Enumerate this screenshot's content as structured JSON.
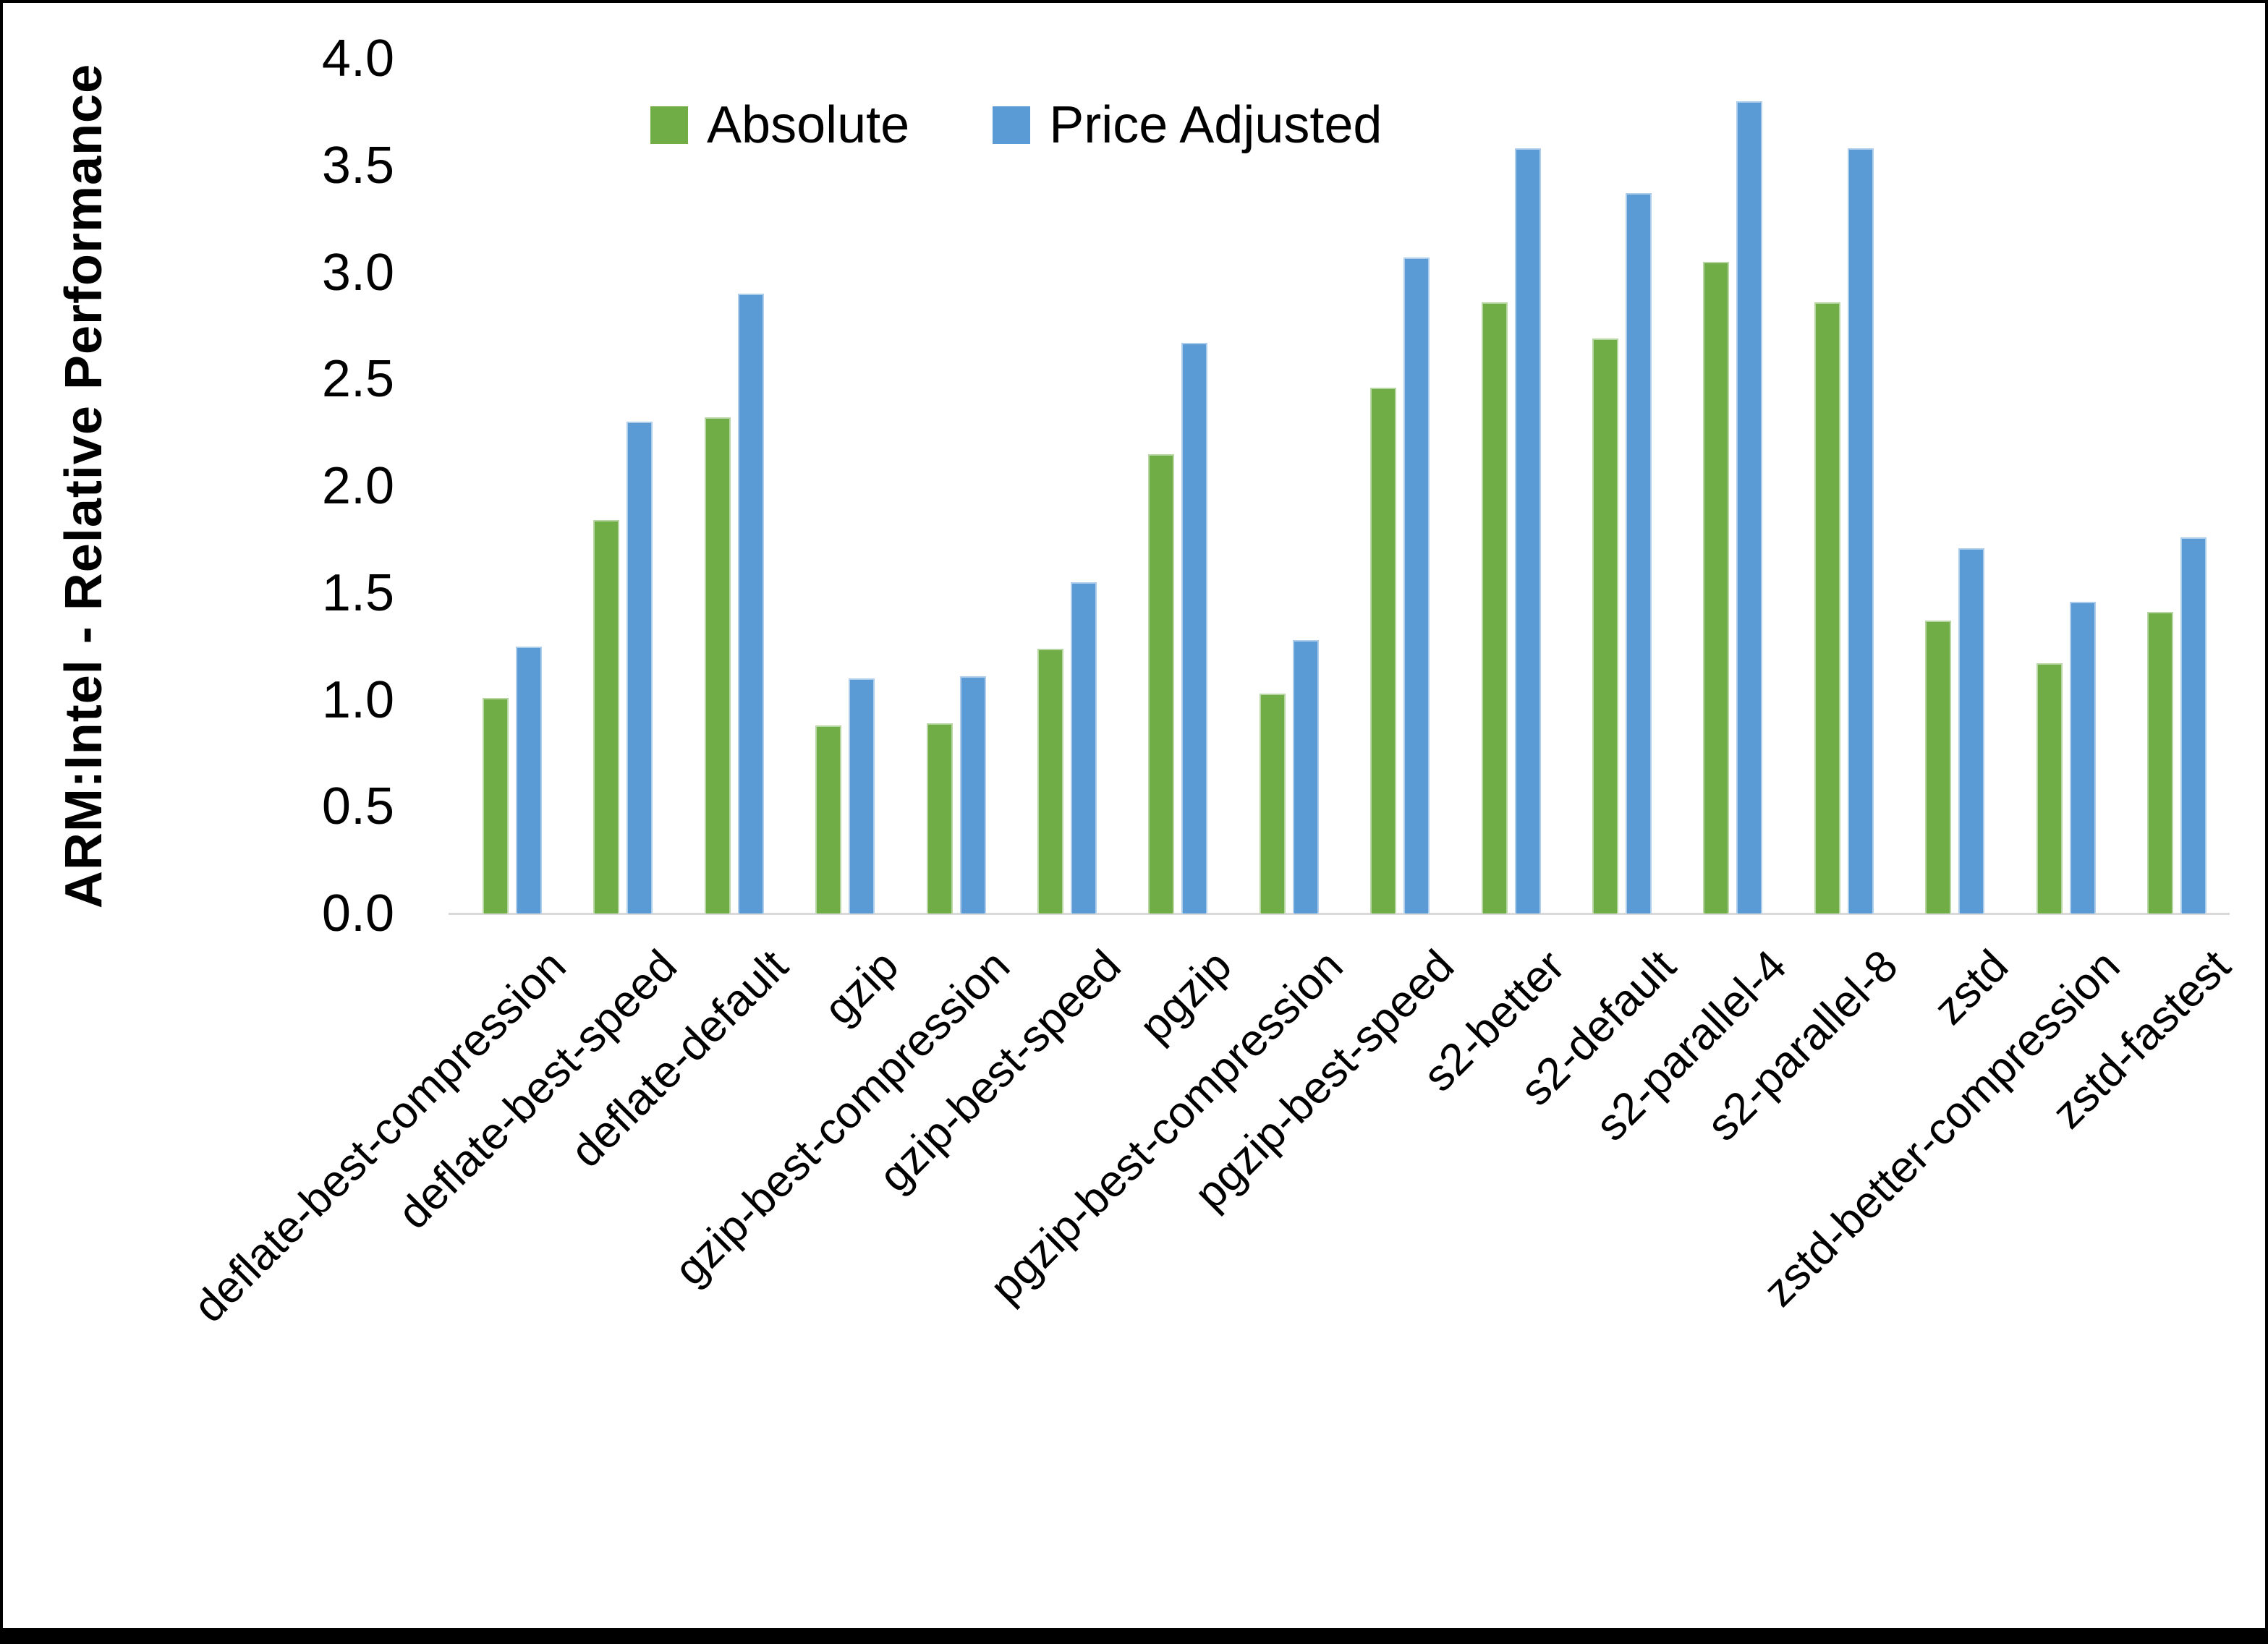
{
  "figure": {
    "background": "#ffffff",
    "frame_border_color": "#000000",
    "axis_line_color": "#d9d9d9",
    "text_color": "#000000"
  },
  "legend": {
    "position": "top-center",
    "items": [
      {
        "label": "Absolute",
        "color": "#70AD47"
      },
      {
        "label": "Price Adjusted",
        "color": "#5B9BD5"
      }
    ]
  },
  "chart_data": {
    "type": "bar",
    "title": "",
    "xlabel": "",
    "ylabel": "ARM:Intel - Relative Performance",
    "ylim": [
      0.0,
      4.0
    ],
    "ytick_step": 0.5,
    "ytick_labels": [
      "0.0",
      "0.5",
      "1.0",
      "1.5",
      "2.0",
      "2.5",
      "3.0",
      "3.5",
      "4.0"
    ],
    "grid": false,
    "legend_position": "top-center",
    "categories": [
      "deflate-best-compression",
      "deflate-best-speed",
      "deflate-default",
      "gzip",
      "gzip-best-compression",
      "gzip-best-speed",
      "pgzip",
      "pgzip-best-compression",
      "pgzip-best-speed",
      "s2-better",
      "s2-default",
      "s2-parallel-4",
      "s2-parallel-8",
      "zstd",
      "zstd-better-compression",
      "zstd-fastest"
    ],
    "series": [
      {
        "name": "Absolute",
        "color": "#70AD47",
        "values": [
          1.01,
          1.84,
          2.32,
          0.88,
          0.89,
          1.24,
          2.15,
          1.03,
          2.46,
          2.86,
          2.69,
          3.05,
          2.86,
          1.37,
          1.17,
          1.41
        ]
      },
      {
        "name": "Price Adjusted",
        "color": "#5B9BD5",
        "values": [
          1.25,
          2.3,
          2.9,
          1.1,
          1.11,
          1.55,
          2.67,
          1.28,
          3.07,
          3.58,
          3.37,
          3.8,
          3.58,
          1.71,
          1.46,
          1.76
        ]
      }
    ]
  }
}
